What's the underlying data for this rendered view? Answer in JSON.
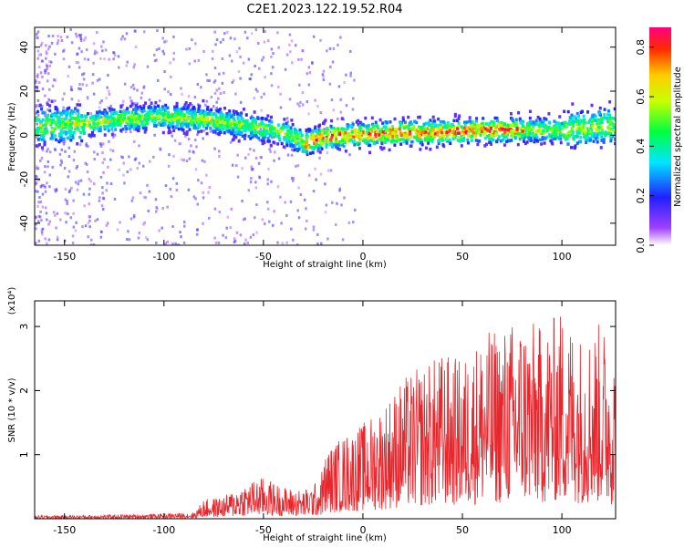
{
  "title": "C2E1.2023.122.19.52.R04",
  "chart_data": [
    {
      "type": "heatmap",
      "xlabel": "Height of straight line (km)",
      "ylabel": "Frequency (Hz)",
      "xlim": [
        -165,
        127
      ],
      "ylim": [
        -50,
        49
      ],
      "xticks": [
        -150,
        -100,
        -50,
        0,
        50,
        100
      ],
      "yticks": [
        -40,
        -20,
        0,
        20,
        40
      ],
      "colorbar": {
        "label": "Normalized spectral amplitude",
        "range": [
          0.0,
          0.88
        ],
        "ticks": [
          0.0,
          0.2,
          0.4,
          0.6,
          0.8
        ]
      },
      "ridge_center_hz": {
        "x": [
          -160,
          -140,
          -120,
          -100,
          -80,
          -60,
          -40,
          -30,
          -20,
          0,
          20,
          40,
          60,
          80,
          100,
          110,
          125
        ],
        "y": [
          5,
          6,
          8,
          9,
          8,
          5,
          2,
          -3,
          0,
          1,
          2,
          2,
          3,
          3,
          3,
          4,
          5
        ]
      }
    },
    {
      "type": "line",
      "xlabel": "Height of straight line (km)",
      "ylabel": "SNR (10 * v/v)",
      "y_multiplier": "(x10⁴)",
      "xlim": [
        -165,
        127
      ],
      "ylim": [
        0,
        3.4
      ],
      "xticks": [
        -150,
        -100,
        -50,
        0,
        50,
        100
      ],
      "yticks": [
        1,
        2,
        3
      ],
      "series": [
        {
          "color": "#e8262c",
          "envelope": {
            "x": [
              -165,
              -130,
              -100,
              -85,
              -80,
              -70,
              -60,
              -50,
              -40,
              -30,
              -22,
              -18,
              -10,
              0,
              10,
              20,
              30,
              40,
              50,
              60,
              70,
              80,
              90,
              100,
              110,
              120,
              127
            ],
            "y": [
              0.05,
              0.06,
              0.08,
              0.1,
              0.3,
              0.35,
              0.55,
              0.65,
              0.5,
              0.45,
              0.6,
              1.1,
              1.3,
              1.5,
              1.8,
              2.2,
              2.4,
              2.6,
              2.5,
              2.9,
              3.0,
              3.2,
              3.0,
              3.3,
              2.9,
              3.1,
              2.6
            ]
          }
        }
      ]
    }
  ]
}
